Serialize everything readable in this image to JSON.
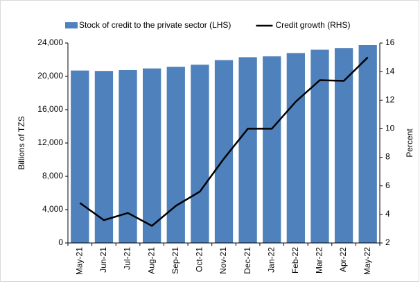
{
  "chart_data": {
    "type": "bar-line",
    "categories": [
      "May-21",
      "Jun-21",
      "Jul-21",
      "Aug-21",
      "Sep-21",
      "Oct-21",
      "Nov-21",
      "Dec-21",
      "Jan-22",
      "Feb-22",
      "Mar-22",
      "Apr-22",
      "May-22"
    ],
    "series": [
      {
        "name": "Stock of credit to the private sector (LHS)",
        "color": "#4f81bd",
        "type": "bar",
        "values": [
          20700,
          20650,
          20750,
          20950,
          21150,
          21400,
          21950,
          22300,
          22400,
          22800,
          23200,
          23400,
          23750
        ]
      },
      {
        "name": "Credit growth (RHS)",
        "color": "#000000",
        "type": "line",
        "axis": "y2",
        "values": [
          4.8,
          3.6,
          4.1,
          3.2,
          4.6,
          5.6,
          7.9,
          10.0,
          10.0,
          11.9,
          13.4,
          13.35,
          15.0
        ]
      }
    ],
    "ylabel": "Billions of TZS",
    "y2label": "Percent",
    "ylim": [
      0,
      24000
    ],
    "yticks": [
      0,
      {
        "value": 4000,
        "label": "4,000"
      },
      {
        "value": 8000,
        "label": "8,000"
      },
      {
        "value": 12000,
        "label": "12,000"
      },
      {
        "value": 16000,
        "label": "16,000"
      },
      {
        "value": 20000,
        "label": "20,000"
      },
      {
        "value": 24000,
        "label": "24,000"
      }
    ],
    "y2lim": [
      2,
      16
    ],
    "y2ticks": [
      2,
      4,
      6,
      8,
      10,
      12,
      14,
      16
    ],
    "grid": false,
    "legend": "top"
  }
}
